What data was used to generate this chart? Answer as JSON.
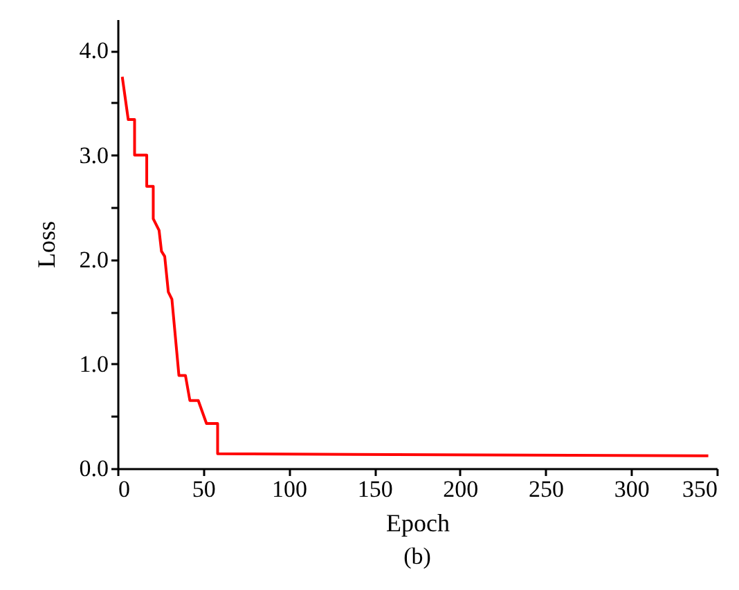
{
  "chart_data": {
    "type": "line",
    "xlabel": "Epoch",
    "ylabel": "Loss",
    "annotations": [
      "(b)"
    ],
    "x": [
      2.7,
      6.2,
      9.9,
      9.9,
      17,
      17,
      20.8,
      20.8,
      24.2,
      25.6,
      27.5,
      29.6,
      31.7,
      35.8,
      39.6,
      42.2,
      47.1,
      51.9,
      58.4,
      58.4,
      345
    ],
    "series": [
      {
        "color": "#ff0000",
        "values": [
          3.75,
          3.34,
          3.34,
          3.0,
          3.0,
          2.7,
          2.7,
          2.39,
          2.28,
          2.08,
          2.03,
          1.69,
          1.62,
          0.89,
          0.89,
          0.65,
          0.65,
          0.43,
          0.43,
          0.14,
          0.12
        ]
      }
    ],
    "xlim": [
      0,
      350
    ],
    "ylim": [
      0,
      4.3
    ],
    "xticks": [
      0,
      50,
      100,
      150,
      200,
      250,
      300,
      350
    ],
    "yticks": [
      {
        "value": 0,
        "label": "0.0"
      },
      {
        "value": 0.5,
        "label": null
      },
      {
        "value": 1,
        "label": "1.0"
      },
      {
        "value": 1.5,
        "label": null
      },
      {
        "value": 2,
        "label": "2.0"
      },
      {
        "value": 2.5,
        "label": null
      },
      {
        "value": 3,
        "label": "3.0"
      },
      {
        "value": 3.5,
        "label": null
      },
      {
        "value": 4,
        "label": "4.0"
      }
    ],
    "grid": false,
    "marker": "none",
    "line_style": "solid"
  }
}
